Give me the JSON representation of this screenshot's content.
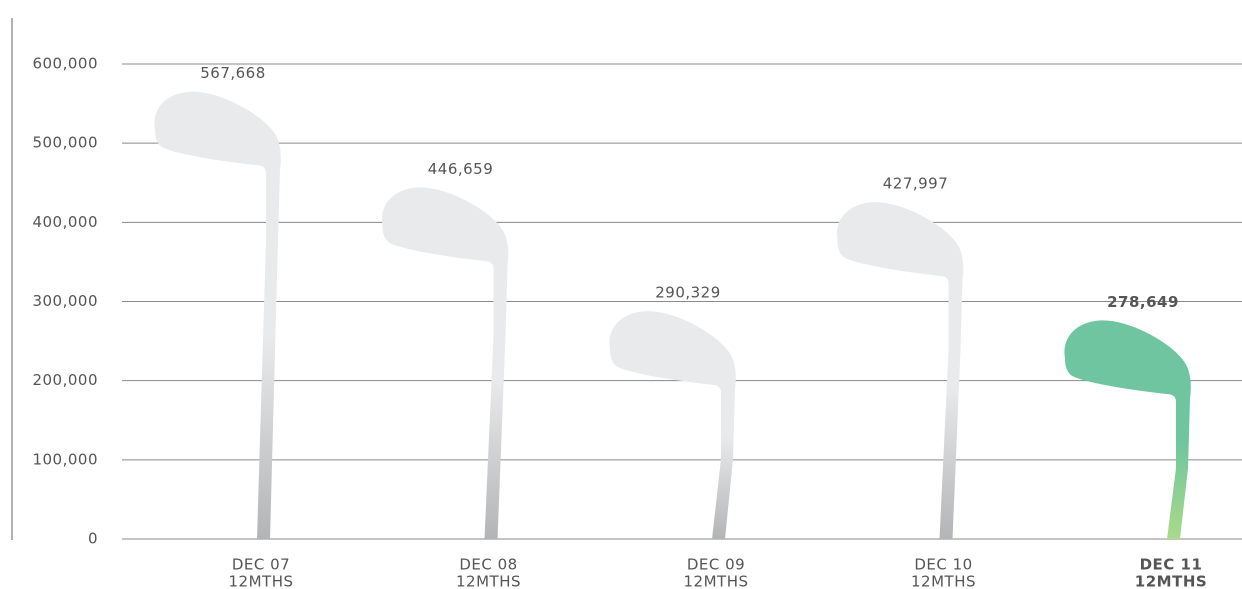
{
  "chart_data": {
    "type": "pictorial-bar",
    "categories": [
      [
        "DEC 07",
        "12MTHS"
      ],
      [
        "DEC 08",
        "12MTHS"
      ],
      [
        "DEC 09",
        "12MTHS"
      ],
      [
        "DEC 10",
        "12MTHS"
      ],
      [
        "DEC 11",
        "12MTHS"
      ]
    ],
    "values": [
      567668,
      446659,
      290329,
      427997,
      278649
    ],
    "value_labels": [
      "567,668",
      "446,659",
      "290,329",
      "427,997",
      "278,649"
    ],
    "colors": [
      [
        "#e9eaeb",
        "#b3b4b6"
      ],
      [
        "#e9eaeb",
        "#b3b4b6"
      ],
      [
        "#e9eaeb",
        "#b3b4b6"
      ],
      [
        "#e9eaeb",
        "#b3b4b6"
      ],
      [
        "#6ec59f",
        "#a9da8a"
      ]
    ],
    "label_colors": [
      "#707173",
      "#707173",
      "#707173",
      "#707173",
      "#00a08c"
    ],
    "highlight": [
      false,
      false,
      false,
      false,
      true
    ],
    "ylim": [
      0,
      600000
    ],
    "yticks": [
      0,
      {
        "value": 100000,
        "label": "100,000"
      },
      {
        "value": 200000,
        "label": "200,000"
      },
      {
        "value": 300000,
        "label": "300,000"
      },
      {
        "value": 400000,
        "label": "400,000"
      },
      {
        "value": 500000,
        "label": "500,000"
      },
      {
        "value": 600000,
        "label": "600,000"
      }
    ],
    "grid": true
  }
}
